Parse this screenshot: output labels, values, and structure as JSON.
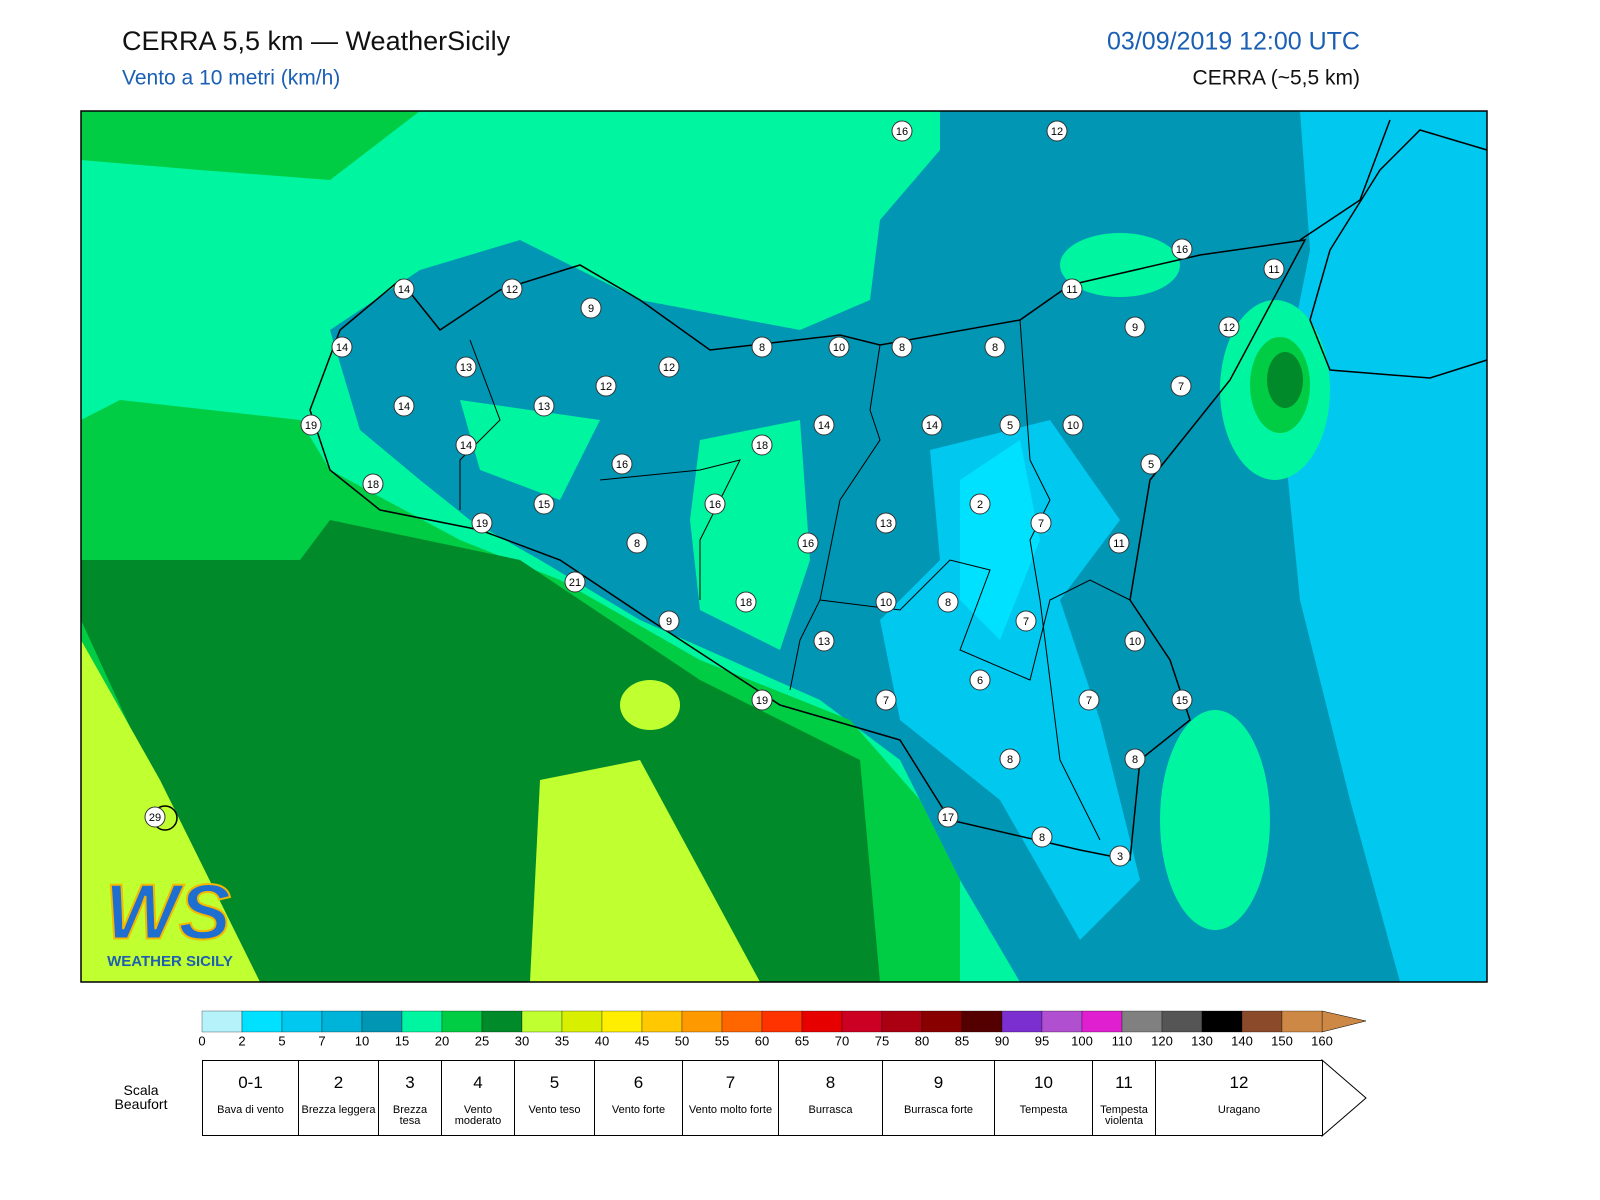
{
  "header": {
    "title": "CERRA 5,5 km — WeatherSicily",
    "subtitle": "Vento a 10 metri (km/h)",
    "datetime": "03/09/2019 12:00 UTC",
    "model": "CERRA (~5,5 km)"
  },
  "stations": [
    16,
    12,
    16,
    11,
    14,
    12,
    11,
    9,
    9,
    12,
    14,
    8,
    10,
    8,
    8,
    13,
    12,
    12,
    7,
    14,
    13,
    19,
    14,
    14,
    5,
    10,
    14,
    18,
    16,
    5,
    18,
    15,
    16,
    2,
    19,
    13,
    7,
    8,
    16,
    11,
    21,
    18,
    10,
    8,
    7,
    9,
    13,
    10,
    6,
    19,
    7,
    7,
    15,
    8,
    8,
    29,
    17,
    8,
    3
  ],
  "colorbar": {
    "ticks": [
      0,
      2,
      5,
      7,
      10,
      15,
      20,
      25,
      30,
      35,
      40,
      45,
      50,
      55,
      60,
      65,
      70,
      75,
      80,
      85,
      90,
      95,
      100,
      110,
      120,
      130,
      140,
      150,
      160
    ],
    "colors": [
      "#b5f2fa",
      "#00e0ff",
      "#00c8ef",
      "#00b3d9",
      "#0096b4",
      "#00f5a0",
      "#00cc44",
      "#008a2a",
      "#c0ff30",
      "#d8f000",
      "#ffee00",
      "#ffc800",
      "#ff9900",
      "#ff6600",
      "#ff3300",
      "#e60000",
      "#cc0022",
      "#aa0011",
      "#880000",
      "#550000",
      "#7b2fd0",
      "#b050d0",
      "#e020d0",
      "#808080",
      "#555555",
      "#000000",
      "#8b4a2a",
      "#cc8844"
    ]
  },
  "beaufort": {
    "label": "Scala Beaufort",
    "classes": [
      {
        "force": "0-1",
        "name": "Bava di vento"
      },
      {
        "force": "2",
        "name": "Brezza leggera"
      },
      {
        "force": "3",
        "name": "Brezza tesa"
      },
      {
        "force": "4",
        "name": "Vento moderato"
      },
      {
        "force": "5",
        "name": "Vento teso"
      },
      {
        "force": "6",
        "name": "Vento forte"
      },
      {
        "force": "7",
        "name": "Vento molto forte"
      },
      {
        "force": "8",
        "name": "Burrasca"
      },
      {
        "force": "9",
        "name": "Burrasca forte"
      },
      {
        "force": "10",
        "name": "Tempesta"
      },
      {
        "force": "11",
        "name": "Tempesta violenta"
      },
      {
        "force": "12",
        "name": "Uragano"
      }
    ]
  },
  "logo": {
    "mark": "WS",
    "text": "WEATHER SICILY"
  }
}
